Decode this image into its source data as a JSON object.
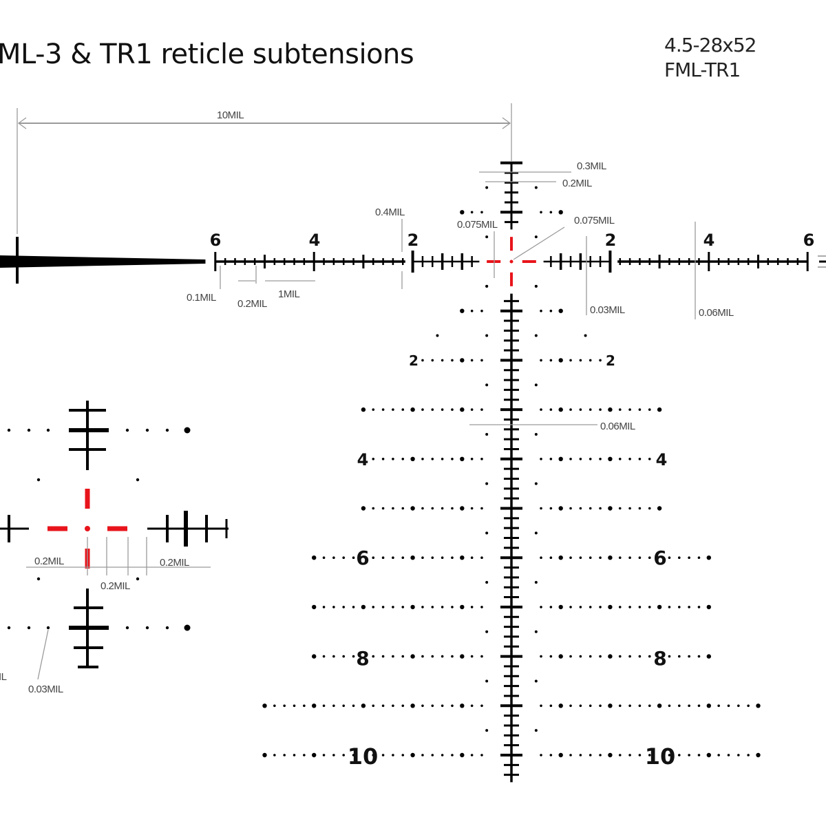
{
  "title": "ML-3 & TR1 reticle subtensions",
  "model": {
    "line1": "4.5-28x52",
    "line2": "FML-TR1"
  },
  "colors": {
    "reticle": "#000000",
    "center_dashes": "#e8141b",
    "dimension_lines": "#9a9a9a"
  },
  "horizontal_numerals": {
    "left": [
      "6",
      "4",
      "2"
    ],
    "right": [
      "2",
      "4",
      "6"
    ]
  },
  "vertical_numerals": {
    "left": [
      "2",
      "4",
      "6",
      "8",
      "10"
    ],
    "right": [
      "2",
      "4",
      "6",
      "8",
      "10"
    ]
  },
  "annotations": {
    "span": "10MIL",
    "top_tick_width_a": "0.3MIL",
    "top_tick_width_b": "0.2MIL",
    "post_gap": "0.4MIL",
    "center_left": "0.075MIL",
    "center_right": "0.075MIL",
    "tick_01": "0.1MIL",
    "tick_02": "0.2MIL",
    "tick_1": "1MIL",
    "line_003": "0.03MIL",
    "line_006": "0.06MIL",
    "stem_006": "0.06MIL",
    "inset_left": "0.2MIL",
    "inset_right": "0.2MIL",
    "inset_mid": "0.2MIL",
    "inset_dot": "0.03MIL",
    "inset_cut": "IL"
  }
}
